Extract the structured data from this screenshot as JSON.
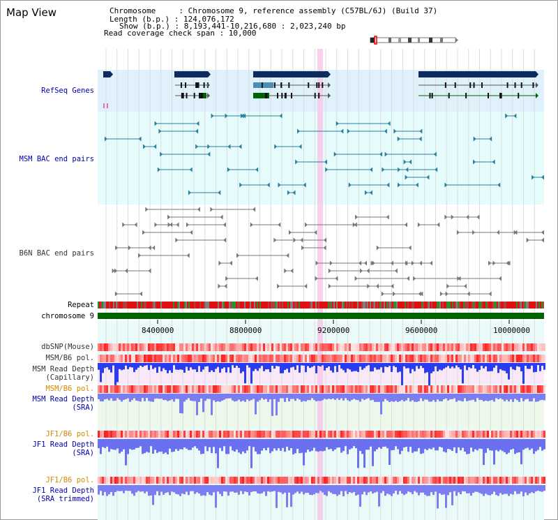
{
  "page_title": "Map View",
  "info": {
    "chromosome": "Chromosome     : Chromosome 9, reference assembly (C57BL/6J) (Build 37)",
    "length": "Length (b.p.) : 124,076,172",
    "show": "Show (b.p.) : 8,193,441-10,216,680 : 2,023,240 bp",
    "coverage": "Read coverage check span : 10,000"
  },
  "tracks": {
    "refseq": "RefSeq Genes",
    "msm_bac": "MSM BAC end pairs",
    "b6n_bac": "B6N BAC end pairs",
    "repeat": "Repeat",
    "chromosome": "chromosome 9",
    "dbsnp": "dbSNP(Mouse)",
    "msm_b6_pol": "MSM/B6 pol.",
    "msm_depth_cap_1": "MSM Read Depth",
    "msm_depth_cap_2": "(Capillary)",
    "msm_b6_pol2": "MSM/B6 pol.",
    "msm_depth_sra_1": "MSM Read Depth",
    "msm_depth_sra_2": "(SRA)",
    "jf1_b6_pol": "JF1/B6 pol.",
    "jf1_depth_1": "JF1 Read Depth",
    "jf1_depth_2": "(SRA)",
    "jf1_b6_pol2": "JF1/B6 pol.",
    "jf1_trim_1": "JF1 Read Depth",
    "jf1_trim_2": "(SRA trimmed)"
  },
  "axis_ticks": [
    "8400000",
    "8800000",
    "9200000",
    "9600000",
    "10000000"
  ],
  "colors": {
    "refseq_bg": "#dff1fb",
    "msm_bg": "#e6fbfb",
    "gene_dark": "#0d2b5e",
    "gene_teal": "#4a8fb3",
    "gene_green": "#006400",
    "bac_msm": "#2a7f9a",
    "bac_b6n": "#777777",
    "highlight": "#f7c8ea",
    "chrom_bar": "#006400",
    "label_blue": "#0000aa",
    "label_orange": "#d08a00"
  }
}
